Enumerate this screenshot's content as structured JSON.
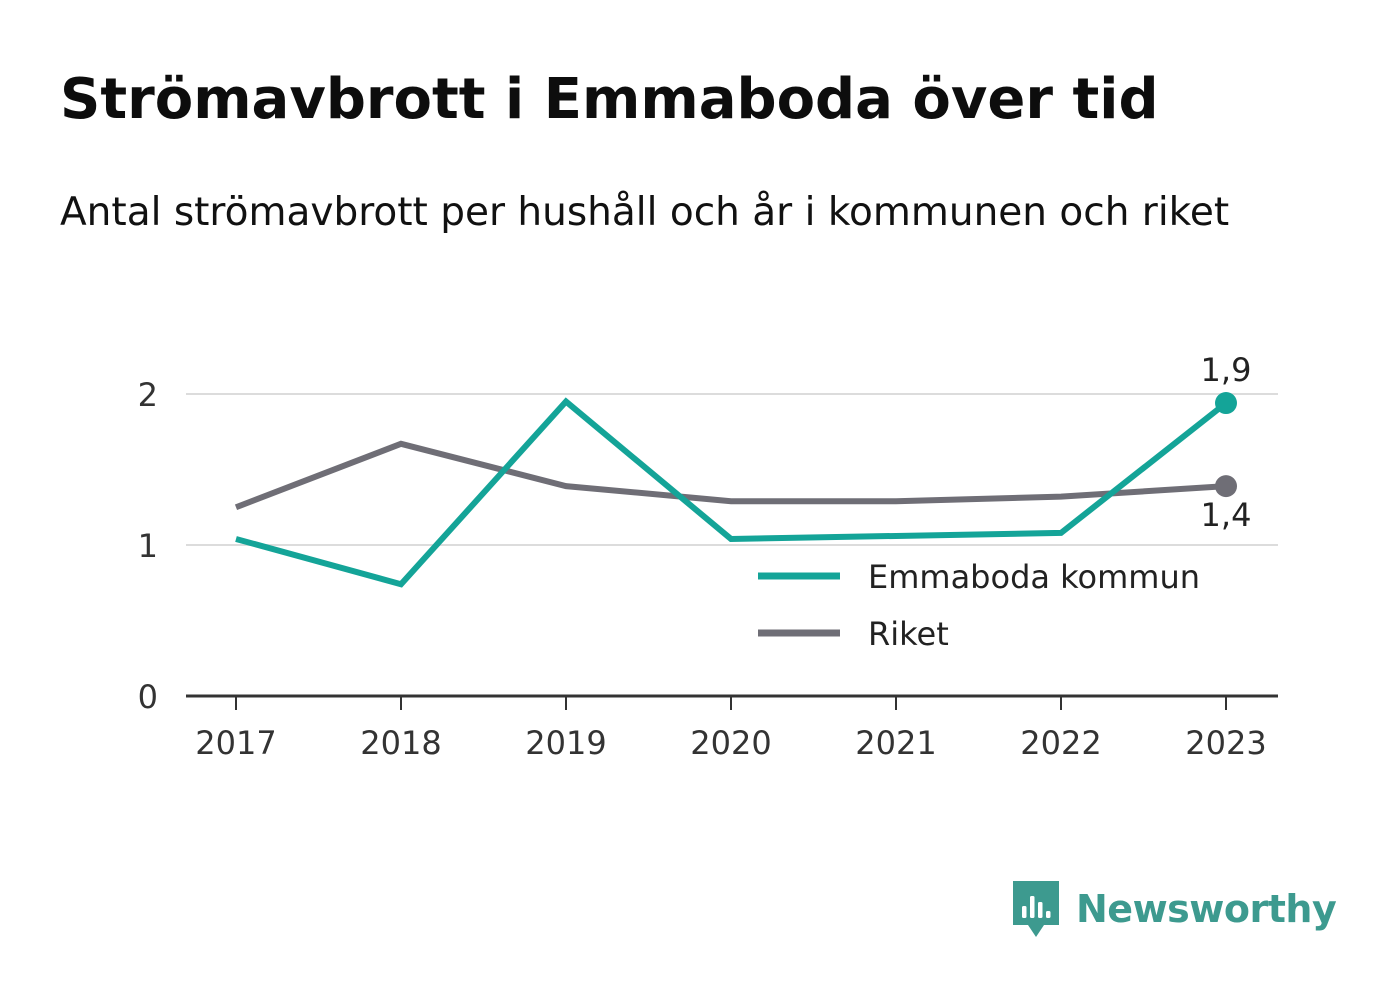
{
  "title": "Strömavbrott i Emmaboda över tid",
  "subtitle": "Antal strömavbrott per hushåll och år i kommunen och riket",
  "brand": {
    "name": "Newsworthy",
    "icon": "newsworthy-logo-icon",
    "color": "#3d9a8f"
  },
  "chart_data": {
    "type": "line",
    "categories": [
      "2017",
      "2018",
      "2019",
      "2020",
      "2021",
      "2022",
      "2023"
    ],
    "ylim": [
      0,
      2.35
    ],
    "yticks": [
      0,
      1,
      2
    ],
    "grid": true,
    "legend_position": "bottom-right",
    "series": [
      {
        "name": "Emmaboda kommun",
        "color": "#14a498",
        "values": [
          1.04,
          0.74,
          1.95,
          1.04,
          1.06,
          1.08,
          1.94
        ],
        "end_label": "1,9",
        "end_label_position": "above"
      },
      {
        "name": "Riket",
        "color": "#6f6e76",
        "values": [
          1.25,
          1.67,
          1.39,
          1.29,
          1.29,
          1.32,
          1.39
        ],
        "end_label": "1,4",
        "end_label_position": "below"
      }
    ]
  }
}
